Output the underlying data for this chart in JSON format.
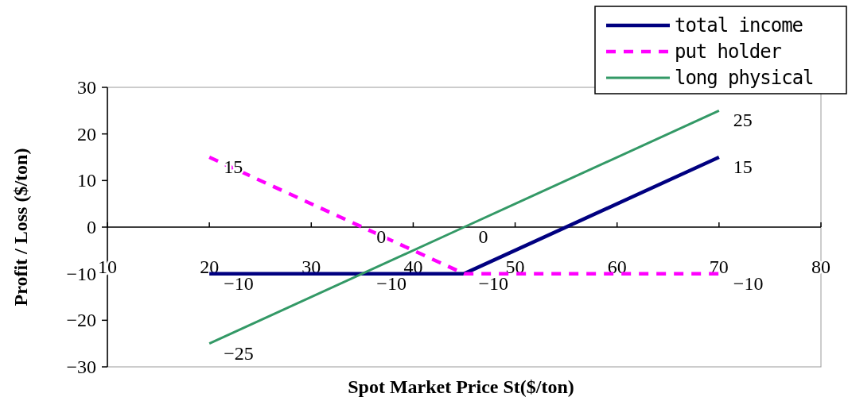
{
  "chart_data": {
    "type": "line",
    "xlabel": "Spot Market Price St($/ton)",
    "ylabel": "Profit / Loss ($/ton)",
    "xlim": [
      10,
      80
    ],
    "xticks": [
      10,
      20,
      30,
      40,
      50,
      60,
      70,
      80
    ],
    "ylim": [
      -30,
      30
    ],
    "yticks": [
      30,
      20,
      10,
      0,
      {
        "value": -10,
        "label": "−10"
      },
      {
        "value": -20,
        "label": "−20"
      },
      {
        "value": -30,
        "label": "−30"
      }
    ],
    "grid": false,
    "legend": "top right",
    "marker": "none",
    "series": [
      {
        "name": "total income",
        "color": "#000080",
        "line_style": "solid",
        "x": [
          20,
          35,
          45,
          70
        ],
        "values": [
          -10,
          -10,
          -10,
          15
        ],
        "value_labels": [
          "−10",
          "−10",
          "−10",
          "15"
        ]
      },
      {
        "name": "put holder",
        "color": "#ff00ff",
        "line_style": "dashed",
        "x": [
          20,
          35,
          45,
          70
        ],
        "values": [
          15,
          0,
          -10,
          -10
        ],
        "value_labels": [
          "15",
          "0",
          null,
          "−10"
        ]
      },
      {
        "name": "long physical",
        "color": "#339966",
        "line_style": "solid",
        "x": [
          20,
          45,
          70
        ],
        "values": [
          -25,
          0,
          25
        ],
        "value_labels": [
          "−25",
          "0",
          "25"
        ]
      }
    ]
  }
}
